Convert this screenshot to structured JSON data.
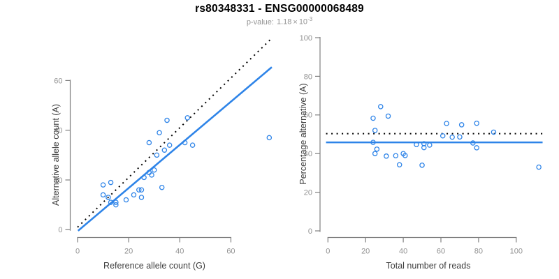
{
  "title": "rs80348331 - ENSG00000068489",
  "subtitle": {
    "label": "p-value:",
    "mantissa": "1.18",
    "times": "×",
    "base": "10",
    "exponent": "-3"
  },
  "colors": {
    "accent_blue": "#2E84E8",
    "identity_black": "#000000",
    "axis_line": "#808080",
    "tick_label": "#919191",
    "axis_label": "#3d3d3d",
    "title": "#000000",
    "subtitle": "#949494"
  },
  "chart_data": [
    {
      "id": "allele-counts",
      "type": "scatter",
      "xlabel": "Reference allele count (G)",
      "ylabel": "Alternative allele count (A)",
      "x_ticks": [
        0,
        20,
        40,
        60
      ],
      "y_ticks": [
        0,
        20,
        40,
        60
      ],
      "xlim": [
        0,
        76
      ],
      "ylim": [
        0,
        78
      ],
      "grid": false,
      "legend": "none",
      "marker": "open-circle",
      "points": [
        [
          10,
          18
        ],
        [
          13,
          19
        ],
        [
          10,
          14
        ],
        [
          12,
          13
        ],
        [
          13,
          11
        ],
        [
          15,
          11
        ],
        [
          15,
          10
        ],
        [
          19,
          12
        ],
        [
          22,
          14
        ],
        [
          24,
          16
        ],
        [
          25,
          16
        ],
        [
          25,
          13
        ],
        [
          26,
          21
        ],
        [
          28,
          23
        ],
        [
          30,
          24
        ],
        [
          29,
          22
        ],
        [
          33,
          17
        ],
        [
          28,
          35
        ],
        [
          31,
          30
        ],
        [
          32,
          39
        ],
        [
          34,
          32
        ],
        [
          35,
          44
        ],
        [
          36,
          34
        ],
        [
          42,
          35
        ],
        [
          43,
          45
        ],
        [
          45,
          34
        ],
        [
          75,
          37
        ]
      ],
      "lines": [
        {
          "name": "identity-line",
          "style": "dotted",
          "slope": 1.0,
          "intercept": 1.0,
          "x_range": [
            0,
            76
          ],
          "color_key": "identity_black"
        },
        {
          "name": "regression-line",
          "style": "solid",
          "slope": 0.868,
          "intercept": -0.6,
          "x_range": [
            0.2,
            76
          ],
          "color_key": "accent_blue"
        }
      ]
    },
    {
      "id": "percentage-by-depth",
      "type": "scatter",
      "xlabel": "Total number of reads",
      "ylabel": "Percentage alternative (A)",
      "x_ticks": [
        0,
        20,
        40,
        60,
        80,
        100
      ],
      "y_ticks": [
        0,
        20,
        40,
        60,
        80,
        100
      ],
      "xlim": [
        -1,
        114
      ],
      "ylim": [
        0,
        100
      ],
      "grid": false,
      "legend": "none",
      "marker": "open-circle",
      "points": [
        [
          28,
          64.3
        ],
        [
          32,
          59.4
        ],
        [
          24,
          58.3
        ],
        [
          25,
          52.0
        ],
        [
          24,
          45.8
        ],
        [
          26,
          42.3
        ],
        [
          25,
          40.0
        ],
        [
          31,
          38.7
        ],
        [
          36,
          38.9
        ],
        [
          40,
          40.0
        ],
        [
          41,
          39.0
        ],
        [
          38,
          34.2
        ],
        [
          47,
          44.7
        ],
        [
          51,
          45.1
        ],
        [
          54,
          44.4
        ],
        [
          51,
          43.1
        ],
        [
          50,
          34.0
        ],
        [
          63,
          55.6
        ],
        [
          61,
          49.2
        ],
        [
          71,
          54.9
        ],
        [
          66,
          48.5
        ],
        [
          79,
          55.7
        ],
        [
          70,
          48.6
        ],
        [
          77,
          45.5
        ],
        [
          88,
          51.1
        ],
        [
          79,
          43.0
        ],
        [
          112,
          33.0
        ]
      ],
      "lines": [
        {
          "name": "expected-line",
          "style": "dotted",
          "slope": 0,
          "intercept": 50.3,
          "x_range": [
            -1,
            114
          ],
          "color_key": "identity_black"
        },
        {
          "name": "regression-line",
          "style": "solid",
          "slope": 0,
          "intercept": 45.8,
          "x_range": [
            -1,
            114
          ],
          "color_key": "accent_blue"
        }
      ]
    }
  ]
}
